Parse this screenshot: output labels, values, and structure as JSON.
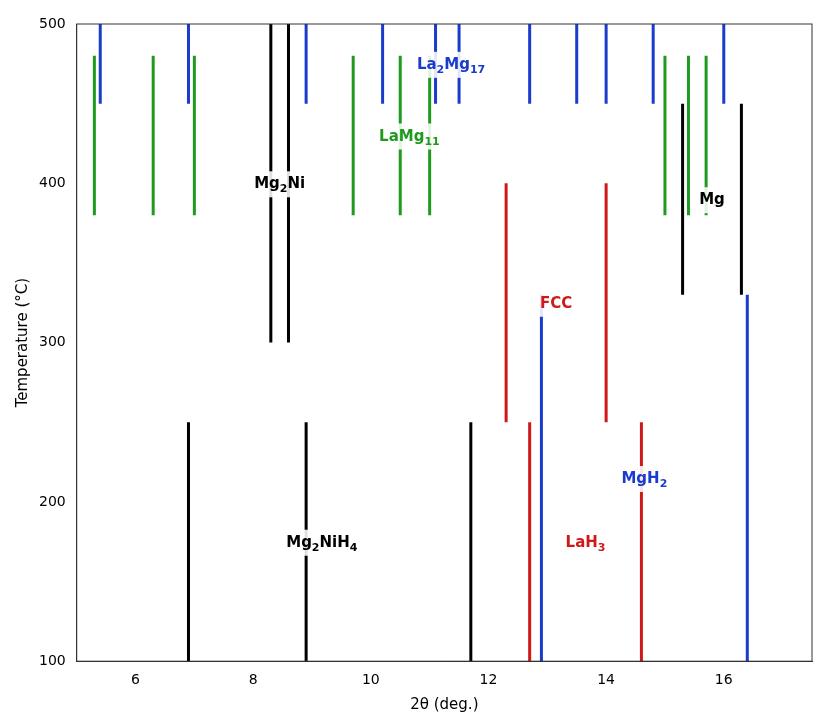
{
  "chart_data": {
    "type": "line",
    "x_label": "2θ (deg.)",
    "y_label": "Temperature (°C)",
    "xlim": [
      5,
      17.5
    ],
    "xticks": [
      6,
      8,
      10,
      12,
      14,
      16
    ],
    "ylim": [
      100,
      500
    ],
    "yticks": [
      100,
      200,
      300,
      400,
      500
    ],
    "grid": false,
    "series": [
      {
        "name": "La2Mg17",
        "color": "#1a3ccc",
        "two_theta": [
          5.4,
          6.9,
          8.9,
          10.2,
          11.1,
          11.5,
          12.7,
          13.5,
          14.0,
          14.8,
          16.0
        ],
        "temperature_range": [
          450,
          500
        ]
      },
      {
        "name": "LaMg11",
        "color": "#1f9a1f",
        "two_theta": [
          5.3,
          6.3,
          7.0,
          9.7,
          10.5,
          11.0,
          15.0,
          15.4,
          15.7
        ],
        "temperature_range": [
          380,
          480
        ]
      },
      {
        "name": "Mg2Ni",
        "color": "#000000",
        "two_theta": [
          8.3,
          8.6
        ],
        "temperature_range": [
          300,
          500
        ]
      },
      {
        "name": "Mg",
        "color": "#000000",
        "two_theta": [
          15.3,
          16.3
        ],
        "temperature_range": [
          330,
          450
        ]
      },
      {
        "name": "FCC",
        "color": "#d01818",
        "two_theta": [
          12.3,
          14.0
        ],
        "temperature_range": [
          250,
          400
        ]
      },
      {
        "name": "MgH2",
        "color": "#1a3ccc",
        "two_theta": [
          12.9,
          16.4
        ],
        "temperature_range": [
          100,
          330
        ]
      },
      {
        "name": "LaH3",
        "color": "#d01818",
        "two_theta": [
          12.7,
          14.6
        ],
        "temperature_range": [
          100,
          250
        ]
      },
      {
        "name": "Mg2NiH4",
        "color": "#000000",
        "two_theta": [
          6.9,
          8.9,
          11.7
        ],
        "temperature_range": [
          100,
          250
        ]
      }
    ]
  }
}
